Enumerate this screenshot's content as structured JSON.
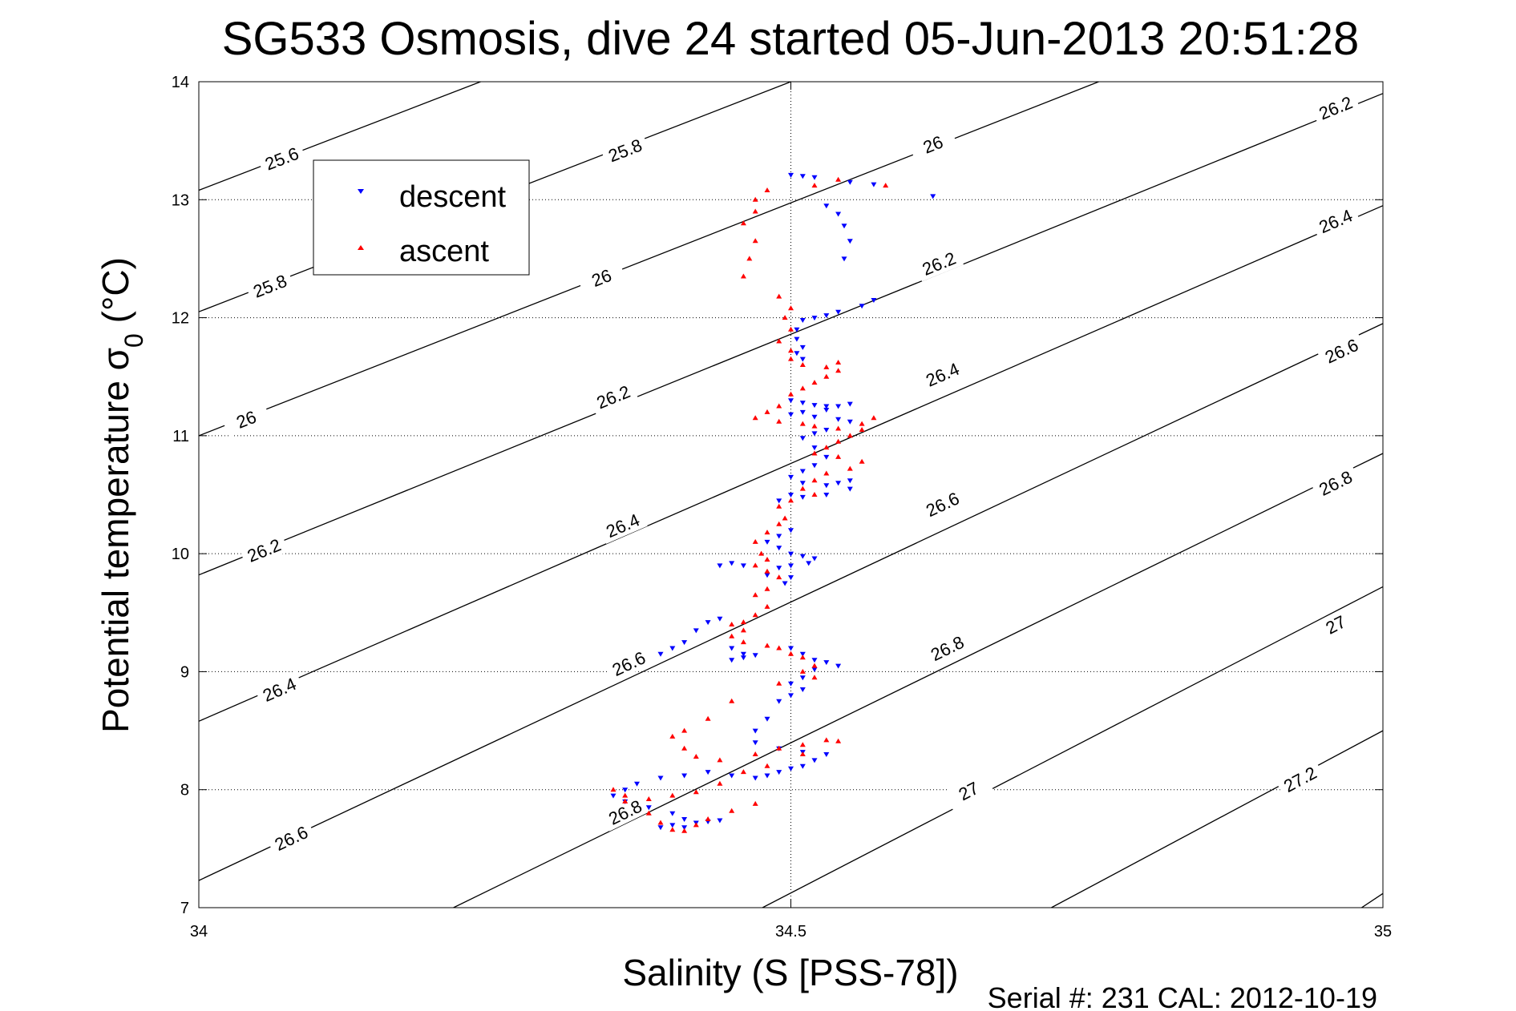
{
  "chart_data": {
    "type": "scatter",
    "title": "SG533 Osmosis, dive 24 started 05-Jun-2013 20:51:28",
    "xlabel": "Salinity (S [PSS-78])",
    "ylabel": "Potential temperature σ",
    "ylabel_subscript": "0",
    "ylabel_unit": " (°C)",
    "xlim": [
      34,
      35
    ],
    "ylim": [
      7,
      14
    ],
    "x_ticks": [
      34,
      34.5,
      35
    ],
    "y_ticks": [
      7,
      8,
      9,
      10,
      11,
      12,
      13,
      14
    ],
    "x_tick_labels": [
      "34",
      "34.5",
      "35"
    ],
    "y_tick_labels": [
      "7",
      "8",
      "9",
      "10",
      "11",
      "12",
      "13",
      "14"
    ],
    "grid": "dotted",
    "legend_position": "top-left",
    "footer": "Serial #: 231  CAL: 2012-10-19",
    "series": [
      {
        "name": "descent",
        "marker": "triangle-down",
        "color": "#0000ff",
        "points": [
          [
            34.5,
            13.21
          ],
          [
            34.51,
            13.2
          ],
          [
            34.52,
            13.19
          ],
          [
            34.55,
            13.15
          ],
          [
            34.57,
            13.13
          ],
          [
            34.62,
            13.03
          ],
          [
            34.53,
            12.95
          ],
          [
            34.54,
            12.88
          ],
          [
            34.545,
            12.78
          ],
          [
            34.55,
            12.65
          ],
          [
            34.545,
            12.5
          ],
          [
            34.57,
            12.15
          ],
          [
            34.56,
            12.1
          ],
          [
            34.54,
            12.05
          ],
          [
            34.53,
            12.02
          ],
          [
            34.52,
            12.0
          ],
          [
            34.51,
            11.98
          ],
          [
            34.505,
            11.9
          ],
          [
            34.505,
            11.82
          ],
          [
            34.51,
            11.75
          ],
          [
            34.505,
            11.7
          ],
          [
            34.51,
            11.65
          ],
          [
            34.5,
            11.3
          ],
          [
            34.51,
            11.28
          ],
          [
            34.52,
            11.26
          ],
          [
            34.53,
            11.25
          ],
          [
            34.54,
            11.25
          ],
          [
            34.55,
            11.27
          ],
          [
            34.53,
            11.22
          ],
          [
            34.51,
            11.2
          ],
          [
            34.5,
            11.18
          ],
          [
            34.52,
            11.16
          ],
          [
            34.54,
            11.14
          ],
          [
            34.55,
            11.12
          ],
          [
            34.53,
            11.05
          ],
          [
            34.52,
            11.02
          ],
          [
            34.51,
            10.98
          ],
          [
            34.52,
            10.9
          ],
          [
            34.53,
            10.82
          ],
          [
            34.52,
            10.75
          ],
          [
            34.51,
            10.7
          ],
          [
            34.5,
            10.65
          ],
          [
            34.51,
            10.6
          ],
          [
            34.53,
            10.58
          ],
          [
            34.54,
            10.6
          ],
          [
            34.55,
            10.62
          ],
          [
            34.55,
            10.55
          ],
          [
            34.53,
            10.5
          ],
          [
            34.51,
            10.48
          ],
          [
            34.5,
            10.5
          ],
          [
            34.49,
            10.45
          ],
          [
            34.5,
            10.2
          ],
          [
            34.49,
            10.15
          ],
          [
            34.48,
            10.1
          ],
          [
            34.49,
            10.05
          ],
          [
            34.5,
            10.0
          ],
          [
            34.51,
            9.98
          ],
          [
            34.52,
            9.96
          ],
          [
            34.515,
            9.92
          ],
          [
            34.5,
            9.9
          ],
          [
            34.49,
            9.88
          ],
          [
            34.46,
            9.9
          ],
          [
            34.45,
            9.92
          ],
          [
            34.44,
            9.9
          ],
          [
            34.48,
            9.82
          ],
          [
            34.5,
            9.8
          ],
          [
            34.495,
            9.75
          ],
          [
            34.44,
            9.45
          ],
          [
            34.43,
            9.42
          ],
          [
            34.42,
            9.35
          ],
          [
            34.41,
            9.25
          ],
          [
            34.4,
            9.2
          ],
          [
            34.39,
            9.15
          ],
          [
            34.45,
            9.2
          ],
          [
            34.46,
            9.15
          ],
          [
            34.45,
            9.1
          ],
          [
            34.46,
            9.12
          ],
          [
            34.47,
            9.14
          ],
          [
            34.5,
            9.2
          ],
          [
            34.51,
            9.15
          ],
          [
            34.52,
            9.1
          ],
          [
            34.53,
            9.08
          ],
          [
            34.54,
            9.05
          ],
          [
            34.52,
            9.02
          ],
          [
            34.51,
            8.95
          ],
          [
            34.5,
            8.9
          ],
          [
            34.51,
            8.85
          ],
          [
            34.5,
            8.8
          ],
          [
            34.49,
            8.75
          ],
          [
            34.48,
            8.6
          ],
          [
            34.47,
            8.5
          ],
          [
            34.47,
            8.4
          ],
          [
            34.49,
            8.35
          ],
          [
            34.51,
            8.32
          ],
          [
            34.53,
            8.3
          ],
          [
            34.52,
            8.25
          ],
          [
            34.51,
            8.2
          ],
          [
            34.5,
            8.18
          ],
          [
            34.49,
            8.15
          ],
          [
            34.48,
            8.12
          ],
          [
            34.47,
            8.1
          ],
          [
            34.45,
            8.12
          ],
          [
            34.43,
            8.15
          ],
          [
            34.41,
            8.12
          ],
          [
            34.39,
            8.1
          ],
          [
            34.37,
            8.05
          ],
          [
            34.36,
            8.0
          ],
          [
            34.35,
            7.95
          ],
          [
            34.36,
            7.9
          ],
          [
            34.38,
            7.85
          ],
          [
            34.4,
            7.8
          ],
          [
            34.41,
            7.75
          ],
          [
            34.42,
            7.72
          ],
          [
            34.4,
            7.7
          ],
          [
            34.39,
            7.68
          ],
          [
            34.41,
            7.68
          ],
          [
            34.43,
            7.73
          ],
          [
            34.44,
            7.74
          ]
        ]
      },
      {
        "name": "ascent",
        "marker": "triangle-up",
        "color": "#ff0000",
        "points": [
          [
            34.58,
            13.12
          ],
          [
            34.54,
            13.17
          ],
          [
            34.52,
            13.12
          ],
          [
            34.48,
            13.08
          ],
          [
            34.47,
            13.0
          ],
          [
            34.47,
            12.9
          ],
          [
            34.46,
            12.8
          ],
          [
            34.47,
            12.65
          ],
          [
            34.465,
            12.5
          ],
          [
            34.46,
            12.35
          ],
          [
            34.49,
            12.18
          ],
          [
            34.5,
            12.08
          ],
          [
            34.495,
            12.0
          ],
          [
            34.5,
            11.9
          ],
          [
            34.49,
            11.8
          ],
          [
            34.5,
            11.72
          ],
          [
            34.5,
            11.65
          ],
          [
            34.51,
            11.6
          ],
          [
            34.53,
            11.58
          ],
          [
            34.54,
            11.62
          ],
          [
            34.54,
            11.55
          ],
          [
            34.53,
            11.5
          ],
          [
            34.52,
            11.45
          ],
          [
            34.51,
            11.4
          ],
          [
            34.5,
            11.35
          ],
          [
            34.49,
            11.25
          ],
          [
            34.48,
            11.2
          ],
          [
            34.47,
            11.15
          ],
          [
            34.49,
            11.12
          ],
          [
            34.51,
            11.1
          ],
          [
            34.52,
            11.08
          ],
          [
            34.54,
            11.06
          ],
          [
            34.56,
            11.1
          ],
          [
            34.57,
            11.15
          ],
          [
            34.56,
            11.05
          ],
          [
            34.55,
            11.0
          ],
          [
            34.54,
            10.95
          ],
          [
            34.53,
            10.9
          ],
          [
            34.52,
            10.85
          ],
          [
            34.54,
            10.82
          ],
          [
            34.56,
            10.78
          ],
          [
            34.55,
            10.72
          ],
          [
            34.53,
            10.68
          ],
          [
            34.52,
            10.62
          ],
          [
            34.51,
            10.55
          ],
          [
            34.52,
            10.5
          ],
          [
            34.5,
            10.45
          ],
          [
            34.49,
            10.4
          ],
          [
            34.495,
            10.3
          ],
          [
            34.49,
            10.25
          ],
          [
            34.48,
            10.18
          ],
          [
            34.47,
            10.1
          ],
          [
            34.475,
            10.0
          ],
          [
            34.48,
            9.95
          ],
          [
            34.47,
            9.9
          ],
          [
            34.48,
            9.85
          ],
          [
            34.49,
            9.8
          ],
          [
            34.48,
            9.7
          ],
          [
            34.47,
            9.65
          ],
          [
            34.48,
            9.55
          ],
          [
            34.47,
            9.48
          ],
          [
            34.46,
            9.42
          ],
          [
            34.45,
            9.4
          ],
          [
            34.46,
            9.35
          ],
          [
            34.45,
            9.3
          ],
          [
            34.46,
            9.25
          ],
          [
            34.48,
            9.22
          ],
          [
            34.49,
            9.2
          ],
          [
            34.5,
            9.15
          ],
          [
            34.51,
            9.12
          ],
          [
            34.52,
            9.05
          ],
          [
            34.51,
            9.0
          ],
          [
            34.52,
            8.95
          ],
          [
            34.49,
            8.9
          ],
          [
            34.45,
            8.75
          ],
          [
            34.43,
            8.6
          ],
          [
            34.41,
            8.5
          ],
          [
            34.4,
            8.45
          ],
          [
            34.41,
            8.35
          ],
          [
            34.42,
            8.28
          ],
          [
            34.44,
            8.25
          ],
          [
            34.47,
            8.3
          ],
          [
            34.49,
            8.35
          ],
          [
            34.51,
            8.38
          ],
          [
            34.53,
            8.42
          ],
          [
            34.54,
            8.41
          ],
          [
            34.51,
            8.3
          ],
          [
            34.48,
            8.2
          ],
          [
            34.46,
            8.15
          ],
          [
            34.44,
            8.05
          ],
          [
            34.42,
            7.98
          ],
          [
            34.4,
            7.95
          ],
          [
            34.38,
            7.92
          ],
          [
            34.36,
            7.95
          ],
          [
            34.35,
            8.0
          ],
          [
            34.36,
            7.9
          ],
          [
            34.38,
            7.8
          ],
          [
            34.39,
            7.72
          ],
          [
            34.4,
            7.66
          ],
          [
            34.41,
            7.65
          ],
          [
            34.42,
            7.7
          ],
          [
            34.43,
            7.75
          ],
          [
            34.45,
            7.82
          ],
          [
            34.47,
            7.88
          ]
        ]
      }
    ],
    "contours": [
      {
        "level": "25.6",
        "lines": [
          [
            [
              34,
              13.08
            ],
            [
              34.238,
              14.0
            ]
          ]
        ],
        "labels": [
          [
            34.07,
            13.35
          ]
        ]
      },
      {
        "level": "25.8",
        "lines": [
          [
            [
              34,
              12.05
            ],
            [
              34.5,
              14.0
            ]
          ]
        ],
        "labels": [
          [
            34.06,
            12.27
          ],
          [
            34.36,
            13.42
          ]
        ]
      },
      {
        "level": "26",
        "lines": [
          [
            [
              34,
              11.0
            ],
            [
              34.76,
              14.0
            ]
          ]
        ],
        "labels": [
          [
            34.04,
            11.14
          ],
          [
            34.34,
            12.34
          ],
          [
            34.62,
            13.47
          ]
        ]
      },
      {
        "level": "26.2",
        "lines": [
          [
            [
              34,
              9.82
            ],
            [
              35,
              13.9
            ]
          ]
        ],
        "labels": [
          [
            34.055,
            10.03
          ],
          [
            34.35,
            11.33
          ],
          [
            34.625,
            12.46
          ],
          [
            34.96,
            13.78
          ]
        ]
      },
      {
        "level": "26.4",
        "lines": [
          [
            [
              34,
              8.58
            ],
            [
              35,
              12.95
            ]
          ]
        ],
        "labels": [
          [
            34.068,
            8.85
          ],
          [
            34.358,
            10.24
          ],
          [
            34.628,
            11.52
          ],
          [
            34.96,
            12.82
          ]
        ]
      },
      {
        "level": "26.6",
        "lines": [
          [
            [
              34,
              7.23
            ],
            [
              35,
              11.95
            ]
          ]
        ],
        "labels": [
          [
            34.078,
            7.59
          ],
          [
            34.363,
            9.07
          ],
          [
            34.628,
            10.42
          ],
          [
            34.965,
            11.72
          ]
        ]
      },
      {
        "level": "26.8",
        "lines": [
          [
            [
              34.215,
              7.0
            ],
            [
              35,
              10.85
            ]
          ]
        ],
        "labels": [
          [
            34.36,
            7.81
          ],
          [
            34.632,
            9.2
          ],
          [
            34.96,
            10.6
          ]
        ]
      },
      {
        "level": "27",
        "lines": [
          [
            [
              34.476,
              7.0
            ],
            [
              35,
              9.72
            ]
          ]
        ],
        "labels": [
          [
            34.65,
            7.99
          ],
          [
            34.96,
            9.4
          ]
        ]
      },
      {
        "level": "27.2",
        "lines": [
          [
            [
              34.72,
              7.0
            ],
            [
              35,
              8.5
            ]
          ]
        ],
        "labels": [
          [
            34.93,
            8.09
          ]
        ]
      },
      {
        "level": "",
        "lines": [
          [
            [
              34.982,
              7.0
            ],
            [
              35,
              7.12
            ]
          ]
        ],
        "labels": []
      }
    ]
  }
}
